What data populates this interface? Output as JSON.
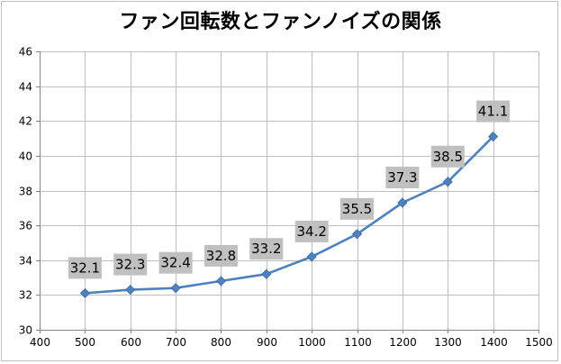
{
  "chart_data": {
    "type": "line",
    "title": "ファン回転数とファンノイズの関係",
    "x": [
      500,
      600,
      700,
      800,
      900,
      1000,
      1100,
      1200,
      1300,
      1400
    ],
    "series": [
      {
        "values": [
          32.1,
          32.3,
          32.4,
          32.8,
          33.2,
          34.2,
          35.5,
          37.3,
          38.5,
          41.1
        ]
      }
    ],
    "data_labels": [
      "32.1",
      "32.3",
      "32.4",
      "32.8",
      "33.2",
      "34.2",
      "35.5",
      "37.3",
      "38.5",
      "41.1"
    ],
    "xlim": [
      400,
      1500
    ],
    "ylim": [
      30,
      46
    ],
    "x_ticks": [
      "400",
      "500",
      "600",
      "700",
      "800",
      "900",
      "1000",
      "1100",
      "1200",
      "1300",
      "1400",
      "1500"
    ],
    "y_ticks": [
      "30",
      "32",
      "34",
      "36",
      "38",
      "40",
      "42",
      "44",
      "46"
    ],
    "xlabel": "",
    "ylabel": "",
    "grid": true,
    "legend": "none",
    "colors": {
      "line": "#4f81bd",
      "marker": "#4f81bd",
      "label_bg": "#c0c0c0",
      "grid": "#bfbfbf"
    }
  }
}
